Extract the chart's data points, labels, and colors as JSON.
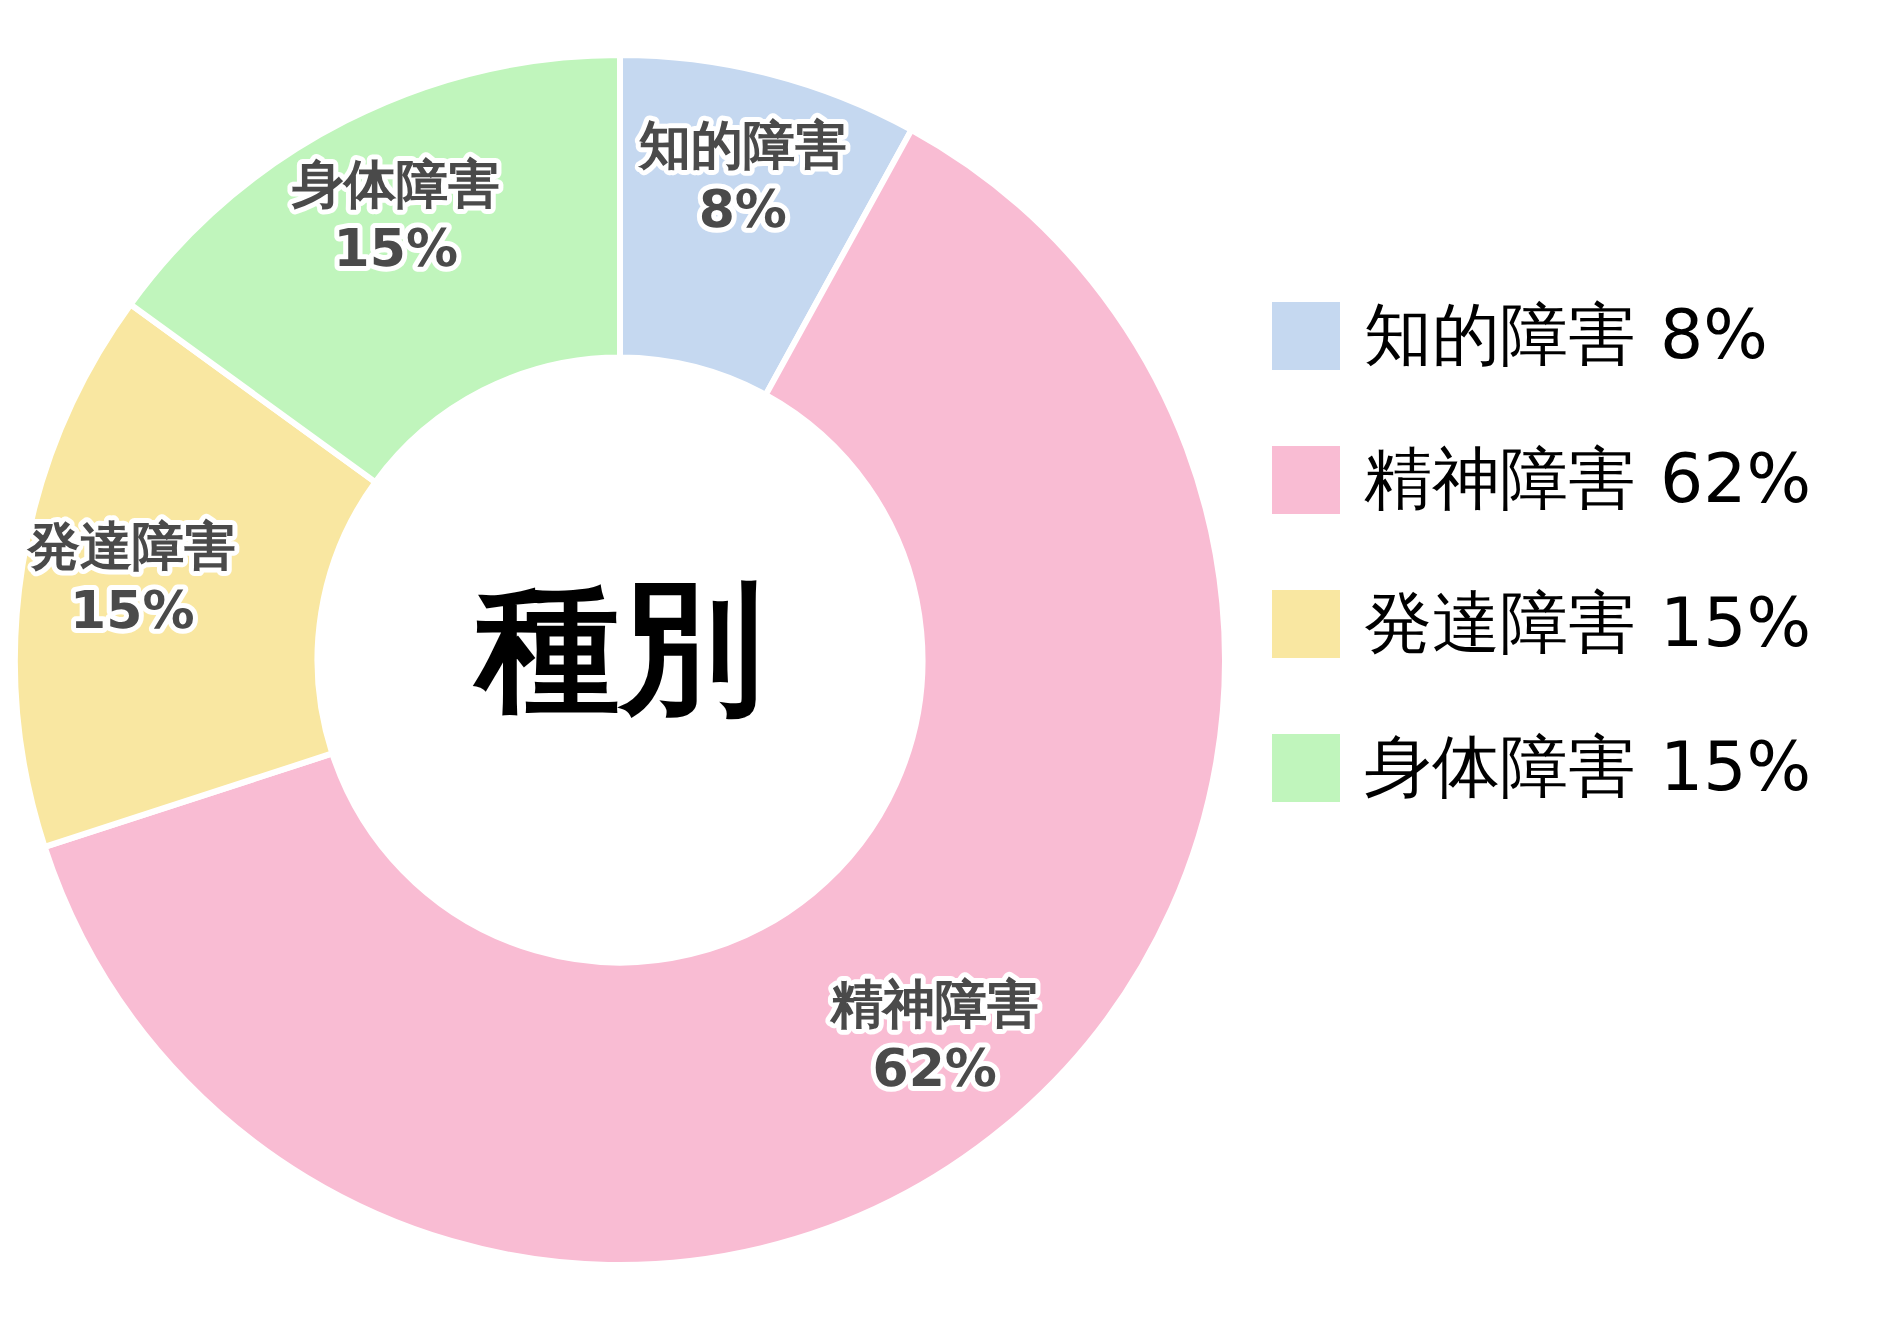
{
  "chart_data": {
    "type": "donut",
    "title": "種別",
    "categories": [
      "知的障害",
      "精神障害",
      "発達障害",
      "身体障害"
    ],
    "values": [
      8,
      62,
      15,
      15
    ],
    "value_labels": [
      "8%",
      "62%",
      "15%",
      "15%"
    ],
    "colors": [
      "#c5d8f0",
      "#f9bcd3",
      "#f9e7a1",
      "#c0f5bc"
    ],
    "legend": "right"
  }
}
